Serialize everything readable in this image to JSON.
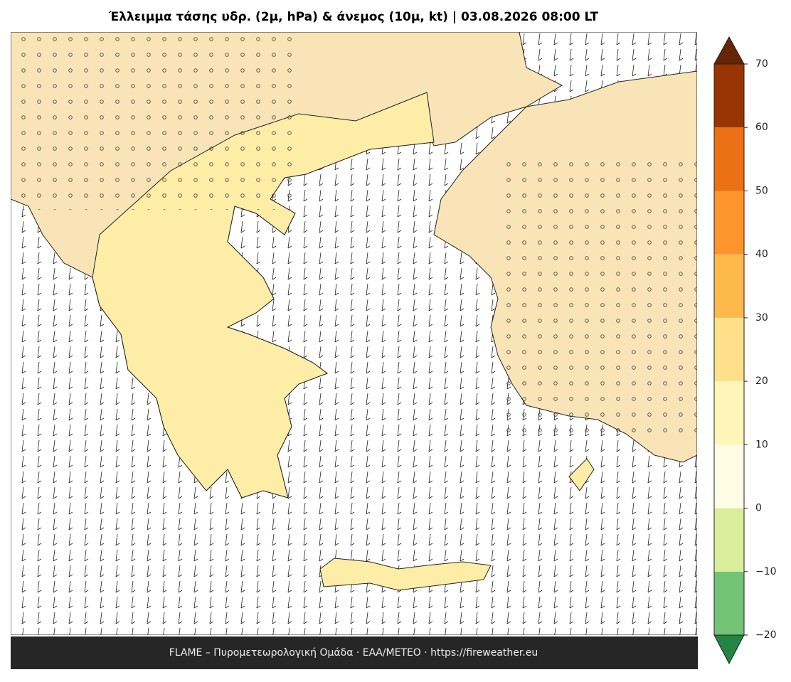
{
  "title": "Έλλειμμα τάσης υδρ. (2μ, hPa) & άνεμος (10μ, kt)  |  03.08.2026 08:00 LT",
  "footer": "FLAME – Πυρομετεωρολογική Ομάδα · ΕΑΑ/METEO · https://fireweather.eu",
  "colorbar": {
    "ticks": [
      {
        "value": -20,
        "label": "−20"
      },
      {
        "value": -10,
        "label": "−10"
      },
      0,
      10,
      20,
      30,
      40,
      50,
      60,
      70
    ],
    "colors": [
      "#74c476",
      "#d9ef9b",
      "#fffde4",
      "#fff5b8",
      "#fee08b",
      "#fdb94c",
      "#fd952c",
      "#ec7014",
      "#993404"
    ],
    "under_color": "#238443",
    "over_color": "#662506"
  }
}
